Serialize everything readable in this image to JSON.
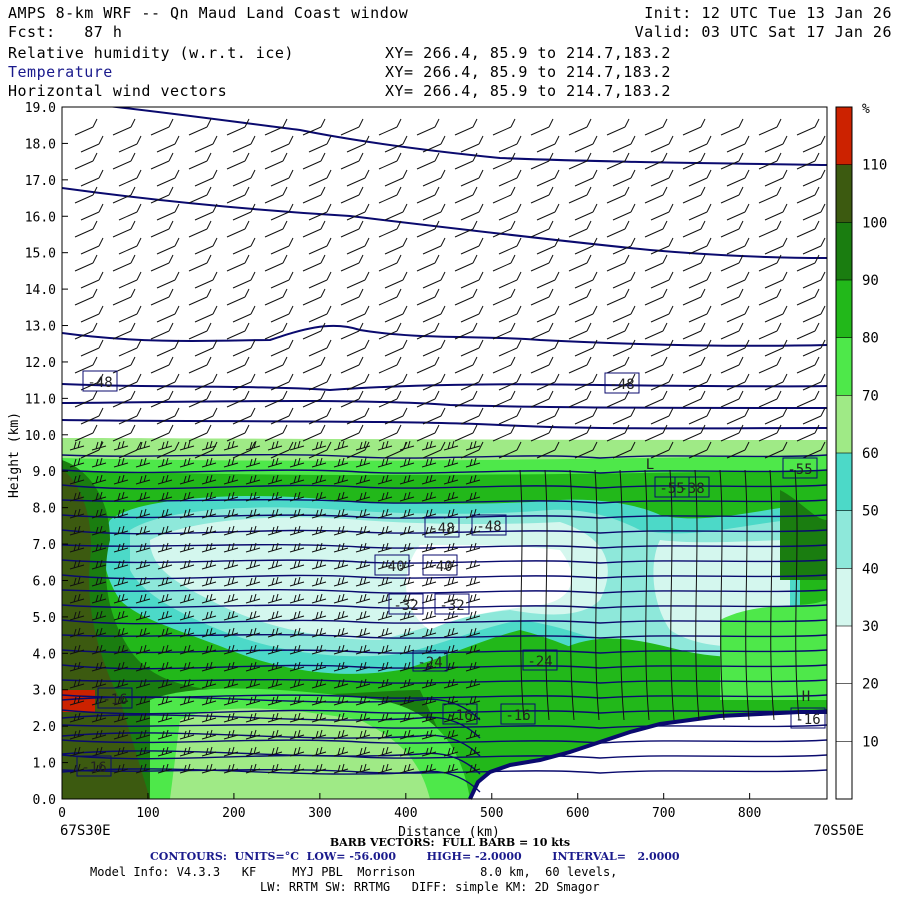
{
  "header": {
    "title": "AMPS 8-km WRF -- Qn Maud Land Coast window",
    "fcst": "Fcst:   87 h",
    "init": "Init: 12 UTC Tue 13 Jan 26",
    "valid": "Valid: 03 UTC Sat 17 Jan 26",
    "field1": "Relative humidity (w.r.t. ice)",
    "field2": "Temperature",
    "field3": "Horizontal wind vectors",
    "xy1": "XY= 266.4, 85.9 to 214.7,183.2",
    "xy2": "XY= 266.4, 85.9 to 214.7,183.2",
    "xy3": "XY= 266.4, 85.9 to 214.7,183.2"
  },
  "footer": {
    "barb": "BARB VECTORS:  FULL BARB = 10 kts",
    "contours": "CONTOURS:  UNITS=°C  LOW= -56.000        HIGH= -2.0000        INTERVAL=   2.0000",
    "model1": "Model Info: V4.3.3   KF     MYJ PBL  Morrison         8.0 km,  60 levels,",
    "model2": "LW: RRTM SW: RRTMG   DIFF: simple KM: 2D Smagor"
  },
  "chart_data": {
    "type": "heatmap",
    "xlabel": "Distance (km)",
    "ylabel": "Height (km)",
    "x_ticks": [
      "0",
      "100",
      "200",
      "300",
      "400",
      "500",
      "600",
      "700",
      "800"
    ],
    "y_ticks": [
      "0.0",
      "1.0",
      "2.0",
      "3.0",
      "4.0",
      "5.0",
      "6.0",
      "7.0",
      "8.0",
      "9.0",
      "10.0",
      "11.0",
      "12.0",
      "13.0",
      "14.0",
      "15.0",
      "16.0",
      "17.0",
      "18.0",
      "19.0"
    ],
    "xlim": [
      0,
      890
    ],
    "ylim": [
      0,
      19
    ],
    "x_end_left": "67S30E",
    "x_end_right": "70S50E",
    "colorbar": {
      "unit": "%",
      "levels": [
        "10",
        "20",
        "30",
        "40",
        "50",
        "60",
        "70",
        "80",
        "90",
        "100",
        "110"
      ],
      "colors": [
        "#ffffff",
        "#ffffff",
        "#ffffff",
        "#d4f7ee",
        "#8ee8da",
        "#4cd9c8",
        "#9fea86",
        "#4ee84a",
        "#22b81a",
        "#1a7d10",
        "#3c5a10",
        "#cc2200"
      ]
    },
    "contour_labels": [
      "-48",
      "-48",
      "-55",
      "-55",
      "-38",
      "-48",
      "-48",
      "-40",
      "-40",
      "-32",
      "-32",
      "-24",
      "-24",
      "-16",
      "-16",
      "-16",
      "-16",
      "H",
      "-16",
      "L"
    ]
  }
}
